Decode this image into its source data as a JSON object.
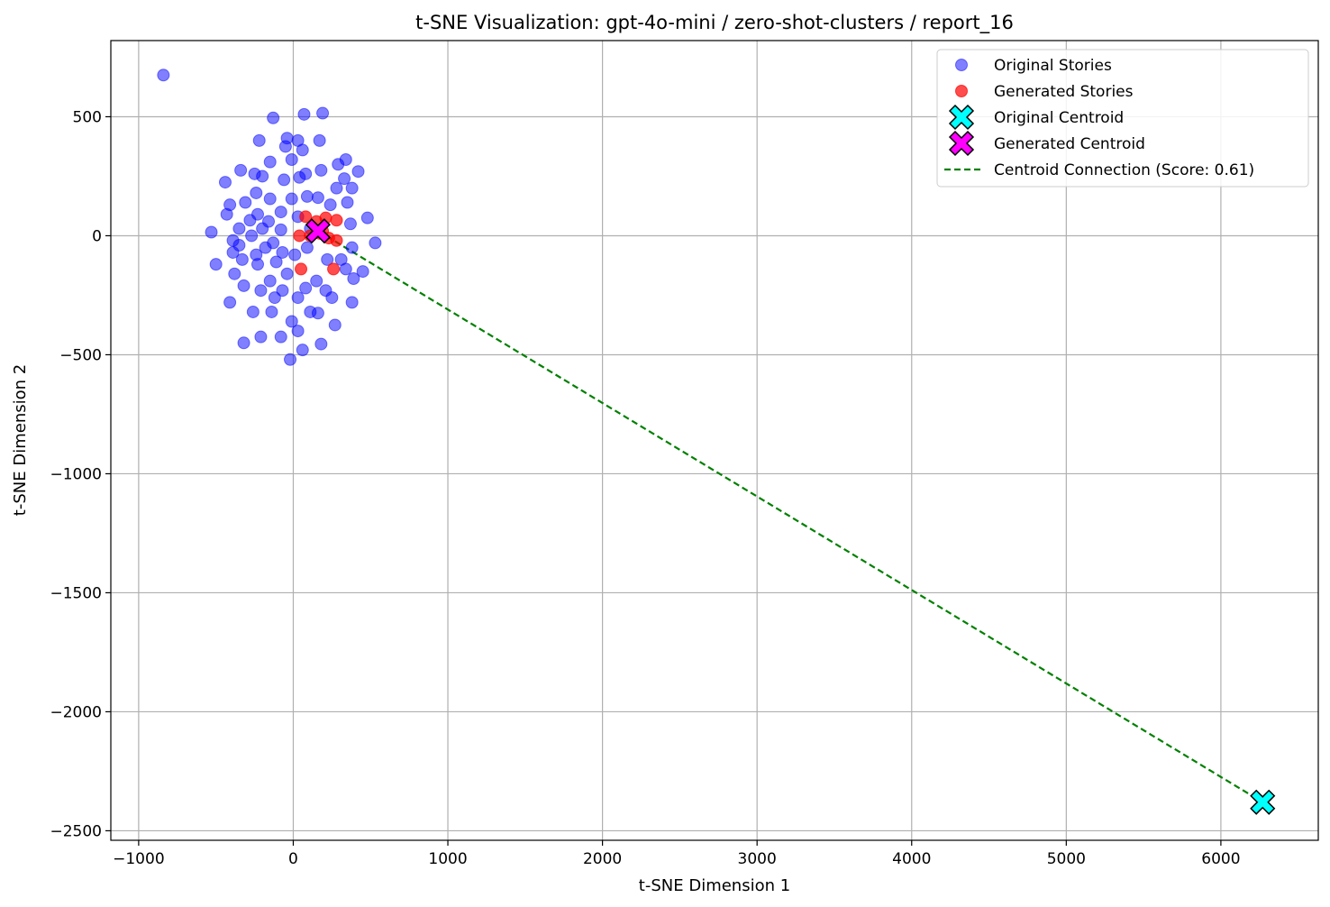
{
  "chart_data": {
    "type": "scatter",
    "title": "t-SNE Visualization: gpt-4o-mini / zero-shot-clusters / report_16",
    "xlabel": "t-SNE Dimension 1",
    "ylabel": "t-SNE Dimension 2",
    "xlim": [
      -1180,
      6630
    ],
    "ylim": [
      -2540,
      820
    ],
    "xticks": [
      -1000,
      0,
      1000,
      2000,
      3000,
      4000,
      5000,
      6000
    ],
    "yticks": [
      500,
      0,
      -500,
      -1000,
      -1500,
      -2000,
      -2500
    ],
    "grid": true,
    "legend_position": "top-right",
    "series": [
      {
        "name": "Original Stories",
        "color": "#0000ff",
        "points": [
          [
            -840,
            675
          ],
          [
            -130,
            495
          ],
          [
            70,
            510
          ],
          [
            190,
            515
          ],
          [
            -220,
            400
          ],
          [
            -40,
            410
          ],
          [
            30,
            400
          ],
          [
            170,
            400
          ],
          [
            -50,
            375
          ],
          [
            60,
            360
          ],
          [
            -150,
            310
          ],
          [
            -10,
            320
          ],
          [
            340,
            320
          ],
          [
            290,
            300
          ],
          [
            -340,
            275
          ],
          [
            180,
            275
          ],
          [
            420,
            270
          ],
          [
            -250,
            260
          ],
          [
            -200,
            250
          ],
          [
            80,
            260
          ],
          [
            -60,
            235
          ],
          [
            40,
            245
          ],
          [
            330,
            240
          ],
          [
            -440,
            225
          ],
          [
            280,
            200
          ],
          [
            380,
            200
          ],
          [
            -240,
            180
          ],
          [
            -150,
            155
          ],
          [
            -10,
            155
          ],
          [
            90,
            165
          ],
          [
            160,
            160
          ],
          [
            350,
            140
          ],
          [
            -410,
            130
          ],
          [
            -310,
            140
          ],
          [
            240,
            130
          ],
          [
            -430,
            90
          ],
          [
            -230,
            90
          ],
          [
            -80,
            100
          ],
          [
            30,
            80
          ],
          [
            -280,
            65
          ],
          [
            -160,
            60
          ],
          [
            480,
            75
          ],
          [
            370,
            50
          ],
          [
            -350,
            30
          ],
          [
            -200,
            30
          ],
          [
            -80,
            25
          ],
          [
            110,
            30
          ],
          [
            -530,
            15
          ],
          [
            -270,
            0
          ],
          [
            -390,
            -20
          ],
          [
            -350,
            -40
          ],
          [
            -130,
            -30
          ],
          [
            380,
            -50
          ],
          [
            530,
            -30
          ],
          [
            -180,
            -50
          ],
          [
            90,
            -50
          ],
          [
            -390,
            -70
          ],
          [
            -240,
            -80
          ],
          [
            -70,
            -70
          ],
          [
            10,
            -80
          ],
          [
            -330,
            -100
          ],
          [
            220,
            -100
          ],
          [
            310,
            -100
          ],
          [
            -500,
            -120
          ],
          [
            -230,
            -120
          ],
          [
            -110,
            -110
          ],
          [
            450,
            -150
          ],
          [
            -380,
            -160
          ],
          [
            -40,
            -160
          ],
          [
            340,
            -140
          ],
          [
            390,
            -180
          ],
          [
            -150,
            -190
          ],
          [
            150,
            -190
          ],
          [
            -320,
            -210
          ],
          [
            -210,
            -230
          ],
          [
            -70,
            -230
          ],
          [
            80,
            -220
          ],
          [
            210,
            -230
          ],
          [
            -120,
            -260
          ],
          [
            30,
            -260
          ],
          [
            250,
            -260
          ],
          [
            -410,
            -280
          ],
          [
            380,
            -280
          ],
          [
            -260,
            -320
          ],
          [
            -140,
            -320
          ],
          [
            110,
            -320
          ],
          [
            160,
            -325
          ],
          [
            -10,
            -360
          ],
          [
            270,
            -375
          ],
          [
            30,
            -400
          ],
          [
            -80,
            -425
          ],
          [
            -210,
            -425
          ],
          [
            -320,
            -450
          ],
          [
            180,
            -455
          ],
          [
            60,
            -480
          ],
          [
            -20,
            -520
          ]
        ]
      },
      {
        "name": "Generated Stories",
        "color": "#ff0000",
        "points": [
          [
            80,
            80
          ],
          [
            210,
            75
          ],
          [
            280,
            65
          ],
          [
            150,
            60
          ],
          [
            190,
            20
          ],
          [
            40,
            0
          ],
          [
            110,
            0
          ],
          [
            170,
            10
          ],
          [
            230,
            -10
          ],
          [
            280,
            -20
          ],
          [
            50,
            -140
          ],
          [
            260,
            -140
          ]
        ]
      }
    ],
    "centroids": [
      {
        "name": "Original Centroid",
        "color": "#00ffff",
        "x": 6270,
        "y": -2380
      },
      {
        "name": "Generated Centroid",
        "color": "#ff00ff",
        "x": 160,
        "y": 20
      }
    ],
    "connection": {
      "name": "Centroid Connection (Score: 0.61)",
      "color": "#008000",
      "from": [
        160,
        20
      ],
      "to": [
        6270,
        -2380
      ]
    },
    "legend": [
      "Original Stories",
      "Generated Stories",
      "Original Centroid",
      "Generated Centroid",
      "Centroid Connection (Score: 0.61)"
    ]
  }
}
